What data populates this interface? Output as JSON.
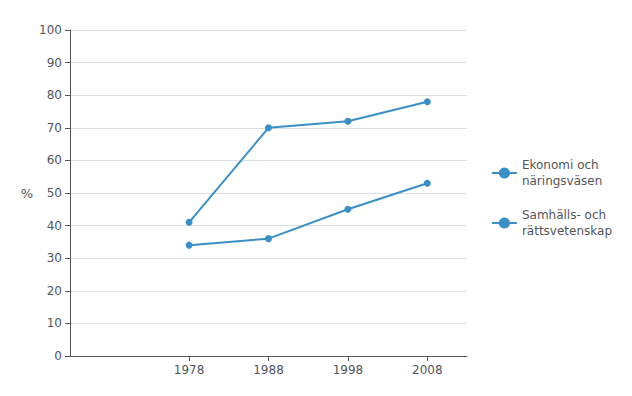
{
  "chart_data": {
    "type": "line",
    "x": [
      1978,
      1988,
      1998,
      2008
    ],
    "series": [
      {
        "name": "Ekonomi och\nnäringsväsen",
        "color": "#3b8fc4",
        "values": [
          41,
          70,
          72,
          78
        ]
      },
      {
        "name": "Samhälls- och\nrättsvetenskap",
        "color": "#3b8fc4",
        "values": [
          34,
          36,
          45,
          53
        ]
      }
    ],
    "marker": "circle",
    "ylabel": "%",
    "xlim": [
      1963,
      2013
    ],
    "xticks": [
      1978,
      1988,
      1998,
      2008
    ],
    "ylim": [
      0,
      100
    ],
    "yticks": [
      0,
      10,
      20,
      30,
      40,
      50,
      60,
      70,
      80,
      90,
      100
    ],
    "grid": true,
    "legend": "right"
  }
}
